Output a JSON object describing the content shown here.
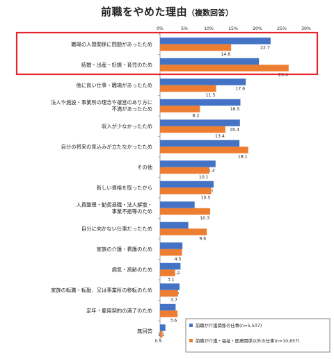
{
  "title": "前職をやめた理由",
  "subtitle": "（複数回答）",
  "colors": {
    "series1": "#4472C4",
    "series2": "#ED7D31",
    "highlight": "#E8242A"
  },
  "chart_data": {
    "type": "bar",
    "orientation": "horizontal",
    "title": "前職をやめた理由（複数回答）",
    "xlim": [
      0,
      30
    ],
    "x_ticks": [
      "0%",
      "5%",
      "10%",
      "15%",
      "20%",
      "25%",
      "30%"
    ],
    "categories": [
      [
        "職場の人間関係に問題があったため"
      ],
      [
        "結婚・出産・妊娠・育児のため"
      ],
      [
        "他に良い仕事・職場があったため"
      ],
      [
        "法人や施設・事業所の理念や運営のあり方に",
        "不満があったため"
      ],
      [
        "収入が少なかったため"
      ],
      [
        "自分の将来の見込みが立たなかったため"
      ],
      [
        "その他"
      ],
      [
        "新しい資格を取ったから"
      ],
      [
        "人員整理・勧奨退職・法人解散・",
        "事業不振等のため"
      ],
      [
        "自分に向かない仕事だったため"
      ],
      [
        "家族の介護・看護のため"
      ],
      [
        "病気・高齢のため"
      ],
      [
        "家族の転職・転勤、又は事業所の移転のため"
      ],
      [
        "定年・雇用契約の満了のため"
      ],
      [
        "無回答"
      ]
    ],
    "series": [
      {
        "name": "前職が介護関係の仕事(n=5,507)",
        "values": [
          22.7,
          20.3,
          17.6,
          16.5,
          16.4,
          16.3,
          11.4,
          11.0,
          7.1,
          5.8,
          4.6,
          4.2,
          4.0,
          3.2,
          1.1
        ]
      },
      {
        "name": "前職が介護・福祉・医療関係以外の仕事(n=10,657)",
        "values": [
          14.6,
          26.4,
          11.5,
          8.2,
          13.4,
          18.1,
          10.1,
          10.5,
          10.3,
          9.6,
          4.5,
          3.1,
          3.7,
          3.6,
          0.5
        ]
      }
    ],
    "value_labels": [
      [
        "22.7",
        "20.3",
        "17.6",
        "16.5",
        "16.4",
        "16.3",
        "11.4",
        "11.0",
        "7.1",
        "5.8",
        "4.6",
        "4.2",
        "4.0",
        "3.2",
        "1.1"
      ],
      [
        "14.6",
        "26.4",
        "11.5",
        "8.2",
        "13.4",
        "18.1",
        "10.1",
        "10.5",
        "10.3",
        "9.6",
        "4.5",
        "3.1",
        "3.7",
        "3.6",
        "0.5"
      ]
    ],
    "highlighted_categories": [
      "職場の人間関係に問題があったため",
      "結婚・出産・妊娠・育児のため"
    ],
    "grid": false,
    "legend": "bottom-right"
  }
}
